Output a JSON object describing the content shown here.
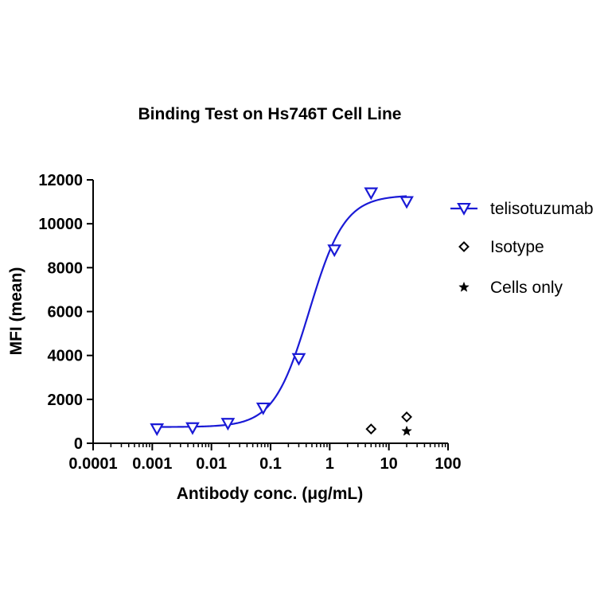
{
  "chart_data": {
    "type": "scatter",
    "title": "Binding Test on Hs746T  Cell Line",
    "xlabel": "Antibody conc. (μg/mL)",
    "ylabel": "MFI (mean)",
    "x_scale": "log",
    "xlim": [
      0.0001,
      100
    ],
    "ylim": [
      0,
      12000
    ],
    "x_ticks": [
      0.0001,
      0.001,
      0.01,
      0.1,
      1,
      10,
      100
    ],
    "x_tick_labels": [
      "0.0001",
      "0.001",
      "0.01",
      "0.1",
      "1",
      "10",
      "100"
    ],
    "y_ticks": [
      0,
      2000,
      4000,
      6000,
      8000,
      10000,
      12000
    ],
    "y_tick_labels": [
      "0",
      "2000",
      "4000",
      "6000",
      "8000",
      "10000",
      "12000"
    ],
    "grid": false,
    "legend_position": "right",
    "series": [
      {
        "name": "telisotuzumab",
        "marker": "triangle-down",
        "color": "#1a1ad6",
        "fit": "sigmoidal",
        "x": [
          0.0012,
          0.0048,
          0.019,
          0.075,
          0.3,
          1.2,
          5,
          20
        ],
        "y": [
          650,
          700,
          900,
          1600,
          3850,
          8800,
          11400,
          11000
        ]
      },
      {
        "name": "Isotype",
        "marker": "diamond",
        "color": "#000000",
        "x": [
          5,
          20
        ],
        "y": [
          650,
          1200
        ]
      },
      {
        "name": "Cells only",
        "marker": "star",
        "color": "#000000",
        "x": [
          20
        ],
        "y": [
          550
        ]
      }
    ]
  }
}
